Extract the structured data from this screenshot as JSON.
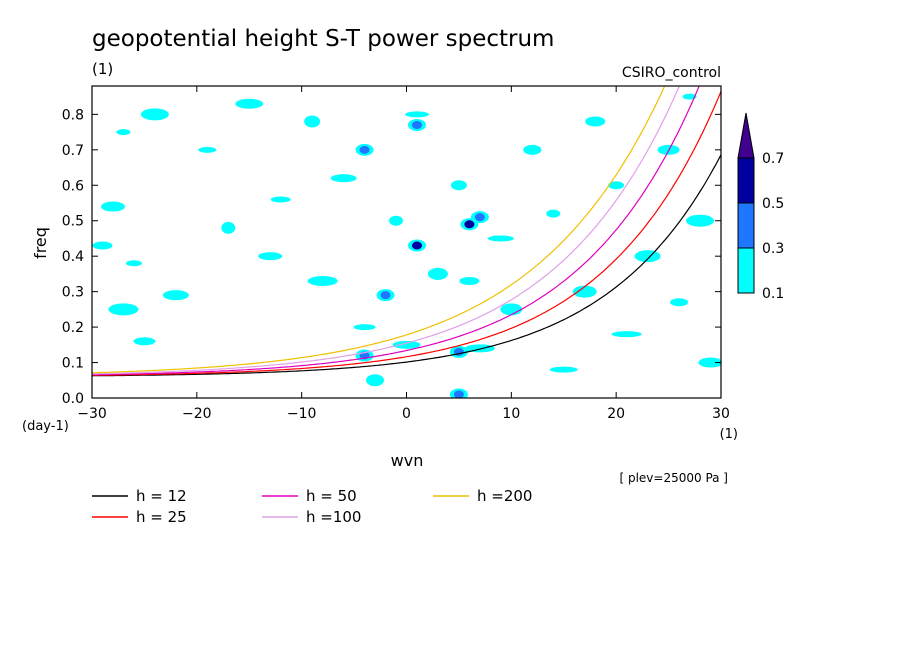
{
  "chart_data": {
    "type": "heatmap",
    "title": "geopotential height S-T power spectrum",
    "units_label": "(1)",
    "model_label": "CSIRO_control",
    "xlabel": "wvn",
    "ylabel": "freq",
    "x_unit_label": "(1)",
    "y_unit_label": "(day-1)",
    "xlim": [
      -30,
      30
    ],
    "ylim": [
      0,
      0.88
    ],
    "xticks": [
      -30,
      -20,
      -10,
      0,
      10,
      20,
      30
    ],
    "yticks": [
      0.0,
      0.1,
      0.2,
      0.3,
      0.4,
      0.5,
      0.6,
      0.7,
      0.8
    ],
    "ytick_labels": [
      "0.0",
      "0.1",
      "0.2",
      "0.3",
      "0.4",
      "0.5",
      "0.6",
      "0.7",
      "0.8"
    ],
    "level_note": "[ plev=25000 Pa ]",
    "colorbar": {
      "levels": [
        "0.1",
        "0.3",
        "0.5",
        "0.7"
      ],
      "colors": [
        "#00ffff",
        "#1e78ff",
        "#0000a0",
        "#400090"
      ]
    },
    "contour_patches": [
      {
        "x": -27,
        "y": 0.75,
        "level": 0.1
      },
      {
        "x": -24,
        "y": 0.8,
        "level": 0.1
      },
      {
        "x": -28,
        "y": 0.54,
        "level": 0.1
      },
      {
        "x": -29,
        "y": 0.43,
        "level": 0.1
      },
      {
        "x": -26,
        "y": 0.38,
        "level": 0.1
      },
      {
        "x": -27,
        "y": 0.25,
        "level": 0.1
      },
      {
        "x": -22,
        "y": 0.29,
        "level": 0.1
      },
      {
        "x": -25,
        "y": 0.16,
        "level": 0.1
      },
      {
        "x": -19,
        "y": 0.7,
        "level": 0.1
      },
      {
        "x": -17,
        "y": 0.48,
        "level": 0.1
      },
      {
        "x": -15,
        "y": 0.83,
        "level": 0.1
      },
      {
        "x": -13,
        "y": 0.4,
        "level": 0.1
      },
      {
        "x": -12,
        "y": 0.56,
        "level": 0.1
      },
      {
        "x": -9,
        "y": 0.78,
        "level": 0.1
      },
      {
        "x": -8,
        "y": 0.33,
        "level": 0.1
      },
      {
        "x": -6,
        "y": 0.62,
        "level": 0.1
      },
      {
        "x": -4,
        "y": 0.2,
        "level": 0.1
      },
      {
        "x": -3,
        "y": 0.05,
        "level": 0.1
      },
      {
        "x": -1,
        "y": 0.5,
        "level": 0.1
      },
      {
        "x": 0,
        "y": 0.15,
        "level": 0.1
      },
      {
        "x": 1,
        "y": 0.8,
        "level": 0.1
      },
      {
        "x": 3,
        "y": 0.35,
        "level": 0.1
      },
      {
        "x": 5,
        "y": 0.6,
        "level": 0.1
      },
      {
        "x": 7,
        "y": 0.14,
        "level": 0.1
      },
      {
        "x": 9,
        "y": 0.45,
        "level": 0.1
      },
      {
        "x": 10,
        "y": 0.25,
        "level": 0.1
      },
      {
        "x": 12,
        "y": 0.7,
        "level": 0.1
      },
      {
        "x": 14,
        "y": 0.52,
        "level": 0.1
      },
      {
        "x": 15,
        "y": 0.08,
        "level": 0.1
      },
      {
        "x": 17,
        "y": 0.3,
        "level": 0.1
      },
      {
        "x": 18,
        "y": 0.78,
        "level": 0.1
      },
      {
        "x": 20,
        "y": 0.6,
        "level": 0.1
      },
      {
        "x": 21,
        "y": 0.18,
        "level": 0.1
      },
      {
        "x": 23,
        "y": 0.4,
        "level": 0.1
      },
      {
        "x": 25,
        "y": 0.7,
        "level": 0.1
      },
      {
        "x": 26,
        "y": 0.27,
        "level": 0.1
      },
      {
        "x": 27,
        "y": 0.85,
        "level": 0.1
      },
      {
        "x": 28,
        "y": 0.5,
        "level": 0.1
      },
      {
        "x": 29,
        "y": 0.1,
        "level": 0.1
      },
      {
        "x": 6,
        "y": 0.33,
        "level": 0.1
      },
      {
        "x": 1,
        "y": 0.43,
        "level": 0.5
      },
      {
        "x": -2,
        "y": 0.29,
        "level": 0.3
      },
      {
        "x": 6,
        "y": 0.49,
        "level": 0.5
      },
      {
        "x": 7,
        "y": 0.51,
        "level": 0.3
      },
      {
        "x": 1,
        "y": 0.77,
        "level": 0.3
      },
      {
        "x": -4,
        "y": 0.12,
        "level": 0.3
      },
      {
        "x": 5,
        "y": 0.01,
        "level": 0.3
      },
      {
        "x": 5,
        "y": 0.13,
        "level": 0.3
      },
      {
        "x": -4,
        "y": 0.7,
        "level": 0.3
      }
    ],
    "series": [
      {
        "name": "h = 12",
        "h": 12,
        "color": "#000000"
      },
      {
        "name": "h = 25",
        "h": 25,
        "color": "#ff0000"
      },
      {
        "name": "h = 50",
        "h": 50,
        "color": "#e000c0"
      },
      {
        "name": "h =100",
        "h": 100,
        "color": "#e0a0e8"
      },
      {
        "name": "h =200",
        "h": 200,
        "color": "#f0c000"
      }
    ]
  }
}
